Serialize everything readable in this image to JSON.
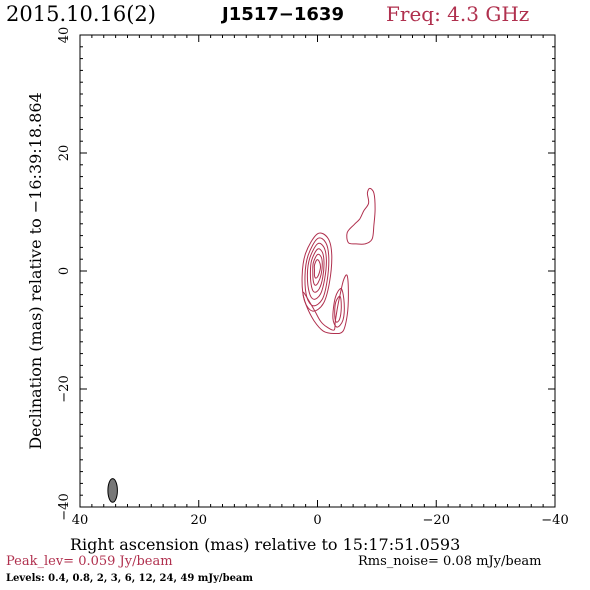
{
  "header": {
    "date": "2015.10.16(2)",
    "source": "J1517−1639",
    "freq": "Freq: 4.3 GHz"
  },
  "footer": {
    "xlabel": "Right ascension (mas) relative to 15:17:51.0593",
    "peak": "Peak_lev=  0.059 Jy/beam",
    "rms": "Rms_noise= 0.08 mJy/beam",
    "levels": "Levels: 0.4, 0.8,    2,    3,    6,   12,   24,   49 mJy/beam"
  },
  "colors": {
    "contour": "#b0304e",
    "title_red": "#b0304e",
    "beam_fill": "#777777"
  },
  "chart_data": {
    "type": "contour",
    "xlabel": "Right ascension (mas) relative to 15:17:51.0593",
    "ylabel": "Declination (mas) relative to −16:39:18.864",
    "xlim": [
      40,
      -40
    ],
    "ylim": [
      -40,
      40
    ],
    "xticks": [
      40,
      20,
      0,
      -20,
      -40
    ],
    "yticks": [
      -40,
      -20,
      0,
      20,
      40
    ],
    "xtick_labels": [
      "40",
      "20",
      "0",
      "−20",
      "−40"
    ],
    "ytick_labels": [
      "−40",
      "−20",
      "0",
      "20",
      "40"
    ],
    "levels_mJy": [
      0.4,
      0.8,
      2,
      3,
      6,
      12,
      24,
      49
    ],
    "beam": {
      "ra": 34.5,
      "dec": -37.2,
      "major_mas": 4.0,
      "minor_mas": 1.6,
      "pa_deg": 0
    },
    "components": [
      {
        "name": "core",
        "rings": [
          [
            [
              0.0,
              6.3
            ],
            [
              -1.8,
              5.5
            ],
            [
              -2.4,
              2.5
            ],
            [
              -2.0,
              -2.0
            ],
            [
              -1.0,
              -5.5
            ],
            [
              0.8,
              -6.8
            ],
            [
              2.2,
              -5.0
            ],
            [
              2.6,
              -1.0
            ],
            [
              2.0,
              3.0
            ]
          ],
          [
            [
              0.0,
              5.5
            ],
            [
              -1.4,
              4.8
            ],
            [
              -1.9,
              2.2
            ],
            [
              -1.6,
              -1.8
            ],
            [
              -0.8,
              -4.8
            ],
            [
              0.7,
              -5.9
            ],
            [
              1.8,
              -4.4
            ],
            [
              2.1,
              -0.8
            ],
            [
              1.6,
              2.6
            ]
          ],
          [
            [
              0.0,
              4.6
            ],
            [
              -1.1,
              4.0
            ],
            [
              -1.5,
              1.8
            ],
            [
              -1.2,
              -1.4
            ],
            [
              -0.5,
              -3.9
            ],
            [
              0.6,
              -4.8
            ],
            [
              1.4,
              -3.6
            ],
            [
              1.7,
              -0.6
            ],
            [
              1.3,
              2.2
            ]
          ],
          [
            [
              0.0,
              3.7
            ],
            [
              -0.8,
              3.2
            ],
            [
              -1.1,
              1.5
            ],
            [
              -0.9,
              -1.0
            ],
            [
              -0.3,
              -3.0
            ],
            [
              0.5,
              -3.6
            ],
            [
              1.0,
              -2.7
            ],
            [
              1.2,
              -0.4
            ],
            [
              1.0,
              1.8
            ]
          ],
          [
            [
              0.0,
              2.8
            ],
            [
              -0.6,
              2.4
            ],
            [
              -0.8,
              1.2
            ],
            [
              -0.6,
              -0.6
            ],
            [
              -0.1,
              -2.0
            ],
            [
              0.4,
              -2.4
            ],
            [
              0.7,
              -1.7
            ],
            [
              0.8,
              -0.2
            ],
            [
              0.7,
              1.4
            ]
          ],
          [
            [
              0.1,
              1.9
            ],
            [
              -0.3,
              1.6
            ],
            [
              -0.5,
              0.7
            ],
            [
              -0.3,
              -0.3
            ],
            [
              0.0,
              -1.0
            ],
            [
              0.3,
              -1.2
            ],
            [
              0.5,
              -0.8
            ],
            [
              0.5,
              0.1
            ],
            [
              0.5,
              1.0
            ]
          ]
        ]
      },
      {
        "name": "southern-extension",
        "rings": [
          [
            [
              2.4,
              -3.6
            ],
            [
              0.6,
              -6.5
            ],
            [
              -0.5,
              -8.5
            ],
            [
              -1.6,
              -9.5
            ],
            [
              -2.8,
              -10.0
            ],
            [
              -3.0,
              -8.5
            ],
            [
              -3.4,
              -6.0
            ],
            [
              -3.8,
              -4.0
            ],
            [
              -4.4,
              -1.5
            ],
            [
              -5.0,
              -0.8
            ],
            [
              -5.2,
              -4.0
            ],
            [
              -5.0,
              -7.5
            ],
            [
              -4.3,
              -10.2
            ],
            [
              -2.8,
              -10.6
            ],
            [
              -1.0,
              -10.2
            ],
            [
              0.6,
              -8.4
            ],
            [
              1.9,
              -5.8
            ]
          ],
          [
            [
              -3.0,
              -4.5
            ],
            [
              -4.0,
              -3.0
            ],
            [
              -4.5,
              -5.5
            ],
            [
              -4.3,
              -8.3
            ],
            [
              -3.3,
              -9.5
            ],
            [
              -2.6,
              -8.0
            ]
          ],
          [
            [
              -3.1,
              -5.2
            ],
            [
              -3.8,
              -4.3
            ],
            [
              -4.0,
              -6.2
            ],
            [
              -3.7,
              -8.2
            ],
            [
              -3.1,
              -8.6
            ],
            [
              -2.9,
              -7.0
            ]
          ]
        ]
      },
      {
        "name": "jet-blob",
        "rings": [
          [
            [
              -5.0,
              6.5
            ],
            [
              -5.2,
              4.8
            ],
            [
              -6.5,
              4.6
            ],
            [
              -8.0,
              4.6
            ],
            [
              -9.2,
              5.4
            ],
            [
              -9.5,
              7.8
            ],
            [
              -9.7,
              10.5
            ],
            [
              -9.5,
              13.2
            ],
            [
              -8.8,
              14.0
            ],
            [
              -8.4,
              13.2
            ],
            [
              -8.6,
              11.5
            ],
            [
              -7.8,
              10.2
            ],
            [
              -7.1,
              8.8
            ],
            [
              -6.2,
              7.9
            ]
          ]
        ]
      }
    ]
  }
}
